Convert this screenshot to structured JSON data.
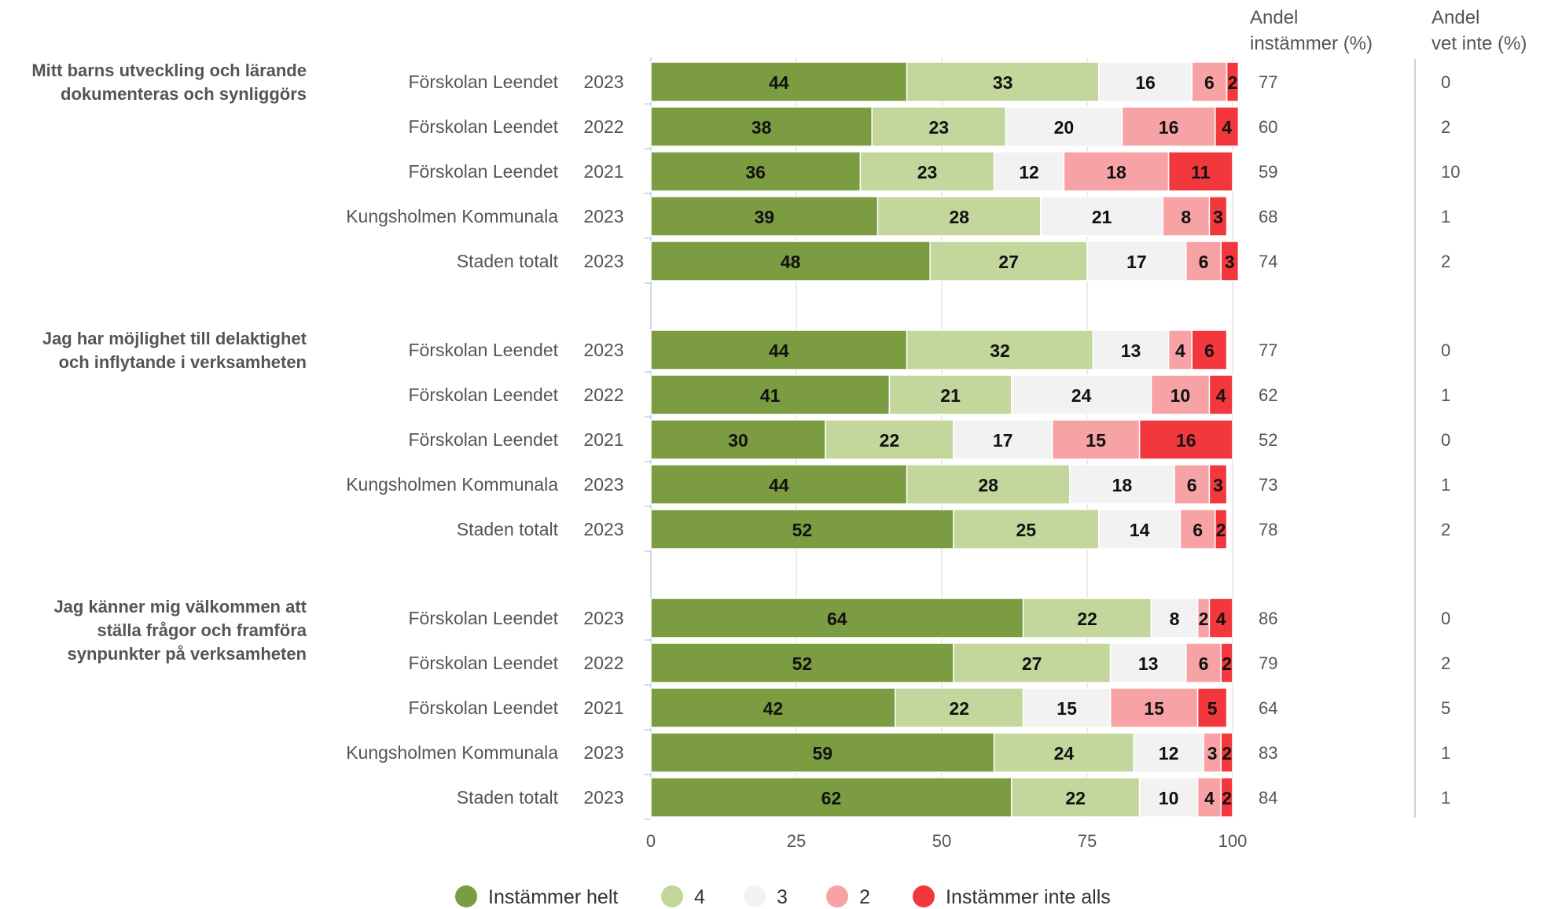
{
  "chart_data": {
    "type": "bar",
    "orientation": "horizontal",
    "stacked": true,
    "xlim": [
      0,
      100
    ],
    "x_ticks": [
      "0",
      "25",
      "50",
      "75",
      "100"
    ],
    "grid": true,
    "legend_position": "bottom",
    "series": [
      {
        "name": "Instämmer helt",
        "color": "#7c9c41"
      },
      {
        "name": "4",
        "color": "#c3d69b"
      },
      {
        "name": "3",
        "color": "#f2f2f2"
      },
      {
        "name": "2",
        "color": "#f7a3a5"
      },
      {
        "name": "Instämmer inte alls",
        "color": "#f2383c"
      }
    ],
    "columns": {
      "agree_header": [
        "Andel",
        "instämmer (%)"
      ],
      "dontknow_header": [
        "Andel",
        "vet inte (%)"
      ]
    },
    "groups": [
      {
        "label": [
          "Mitt barns utveckling och lärande",
          "dokumenteras och synliggörs"
        ],
        "rows": [
          {
            "name": "Förskolan Leendet",
            "year": "2023",
            "values": [
              44,
              33,
              16,
              6,
              2
            ],
            "agree": "77",
            "dontknow": "0"
          },
          {
            "name": "Förskolan Leendet",
            "year": "2022",
            "values": [
              38,
              23,
              20,
              16,
              4
            ],
            "agree": "60",
            "dontknow": "2"
          },
          {
            "name": "Förskolan Leendet",
            "year": "2021",
            "values": [
              36,
              23,
              12,
              18,
              11
            ],
            "agree": "59",
            "dontknow": "10"
          },
          {
            "name": "Kungsholmen Kommunala",
            "year": "2023",
            "values": [
              39,
              28,
              21,
              8,
              3
            ],
            "agree": "68",
            "dontknow": "1"
          },
          {
            "name": "Staden totalt",
            "year": "2023",
            "values": [
              48,
              27,
              17,
              6,
              3
            ],
            "agree": "74",
            "dontknow": "2"
          }
        ]
      },
      {
        "label": [
          "Jag har möjlighet till delaktighet",
          "och inflytande i verksamheten"
        ],
        "rows": [
          {
            "name": "Förskolan Leendet",
            "year": "2023",
            "values": [
              44,
              32,
              13,
              4,
              6
            ],
            "agree": "77",
            "dontknow": "0"
          },
          {
            "name": "Förskolan Leendet",
            "year": "2022",
            "values": [
              41,
              21,
              24,
              10,
              4
            ],
            "agree": "62",
            "dontknow": "1"
          },
          {
            "name": "Förskolan Leendet",
            "year": "2021",
            "values": [
              30,
              22,
              17,
              15,
              16
            ],
            "agree": "52",
            "dontknow": "0"
          },
          {
            "name": "Kungsholmen Kommunala",
            "year": "2023",
            "values": [
              44,
              28,
              18,
              6,
              3
            ],
            "agree": "73",
            "dontknow": "1"
          },
          {
            "name": "Staden totalt",
            "year": "2023",
            "values": [
              52,
              25,
              14,
              6,
              2
            ],
            "agree": "78",
            "dontknow": "2"
          }
        ]
      },
      {
        "label": [
          "Jag känner mig välkommen att",
          "ställa frågor och framföra",
          "synpunkter på verksamheten"
        ],
        "rows": [
          {
            "name": "Förskolan Leendet",
            "year": "2023",
            "values": [
              64,
              22,
              8,
              2,
              4
            ],
            "agree": "86",
            "dontknow": "0"
          },
          {
            "name": "Förskolan Leendet",
            "year": "2022",
            "values": [
              52,
              27,
              13,
              6,
              2
            ],
            "agree": "79",
            "dontknow": "2"
          },
          {
            "name": "Förskolan Leendet",
            "year": "2021",
            "values": [
              42,
              22,
              15,
              15,
              5
            ],
            "agree": "64",
            "dontknow": "5"
          },
          {
            "name": "Kungsholmen Kommunala",
            "year": "2023",
            "values": [
              59,
              24,
              12,
              3,
              2
            ],
            "agree": "83",
            "dontknow": "1"
          },
          {
            "name": "Staden totalt",
            "year": "2023",
            "values": [
              62,
              22,
              10,
              4,
              2
            ],
            "agree": "84",
            "dontknow": "1"
          }
        ]
      }
    ]
  }
}
